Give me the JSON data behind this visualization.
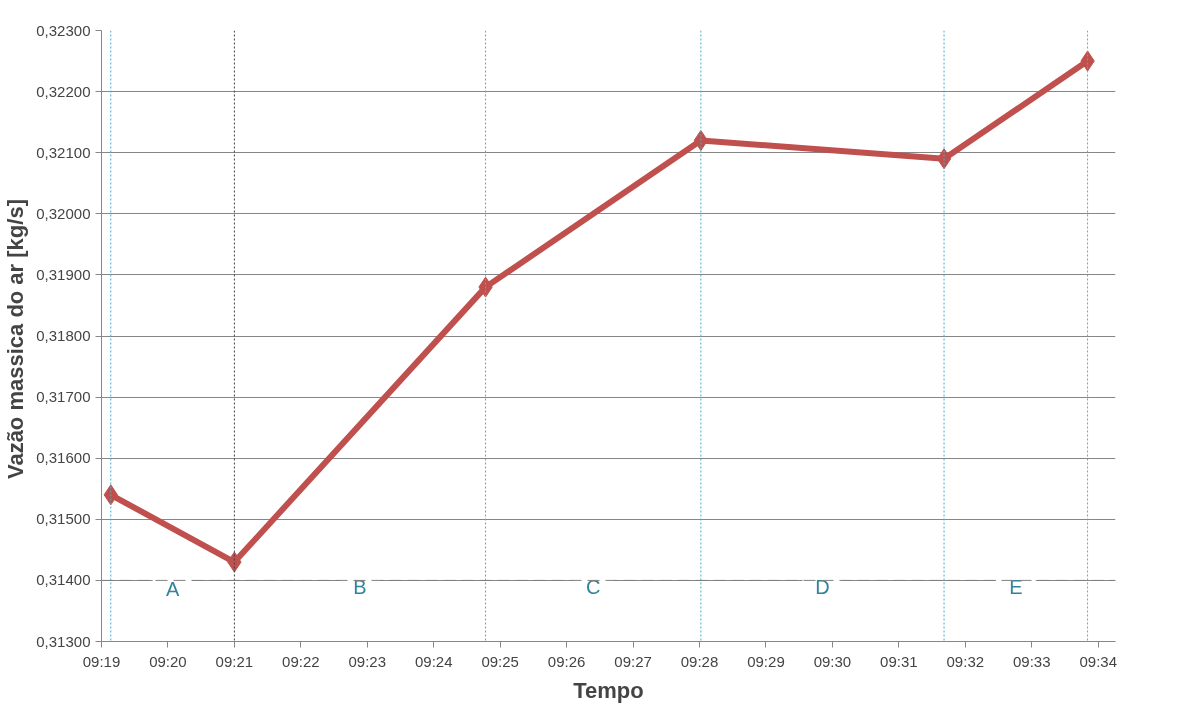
{
  "chart_data": {
    "type": "line",
    "xlabel": "Tempo",
    "ylabel": "Vazão massica do ar  [kg/s]",
    "x": [
      9.319,
      9.35,
      9.413,
      9.467,
      9.528,
      9.564
    ],
    "series": [
      {
        "color": "#c0504d",
        "values": [
          0.3154,
          0.3143,
          0.3188,
          0.3212,
          0.3209,
          0.3225
        ]
      }
    ],
    "marker": "diamond",
    "line_style": "solid",
    "grid": "y",
    "xlim": [
      9.31667,
      9.571
    ],
    "xticks": [
      {
        "value": 9.31667,
        "label": "09:19"
      },
      {
        "value": 9.33333,
        "label": "09:20"
      },
      {
        "value": 9.35,
        "label": "09:21"
      },
      {
        "value": 9.36667,
        "label": "09:22"
      },
      {
        "value": 9.38333,
        "label": "09:23"
      },
      {
        "value": 9.4,
        "label": "09:24"
      },
      {
        "value": 9.41667,
        "label": "09:25"
      },
      {
        "value": 9.43333,
        "label": "09:26"
      },
      {
        "value": 9.45,
        "label": "09:27"
      },
      {
        "value": 9.46667,
        "label": "09:28"
      },
      {
        "value": 9.48333,
        "label": "09:29"
      },
      {
        "value": 9.5,
        "label": "09:30"
      },
      {
        "value": 9.51667,
        "label": "09:31"
      },
      {
        "value": 9.53333,
        "label": "09:32"
      },
      {
        "value": 9.55,
        "label": "09:33"
      },
      {
        "value": 9.56667,
        "label": "09:34"
      }
    ],
    "ylim": [
      0.313,
      0.323
    ],
    "yticks": [
      {
        "value": 0.313,
        "label": "0,31300"
      },
      {
        "value": 0.314,
        "label": "0,31400"
      },
      {
        "value": 0.315,
        "label": "0,31500"
      },
      {
        "value": 0.316,
        "label": "0,31600"
      },
      {
        "value": 0.317,
        "label": "0,31700"
      },
      {
        "value": 0.318,
        "label": "0,31800"
      },
      {
        "value": 0.319,
        "label": "0,31900"
      },
      {
        "value": 0.32,
        "label": "0,32000"
      },
      {
        "value": 0.321,
        "label": "0,32100"
      },
      {
        "value": 0.322,
        "label": "0,32200"
      },
      {
        "value": 0.323,
        "label": "0,32300"
      }
    ],
    "ref_lines": [
      {
        "axis": "x",
        "value": 9.319,
        "color": "#4bacc6",
        "line_style": "dotted"
      },
      {
        "axis": "x",
        "value": 9.35,
        "color": "#404040",
        "line_style": "dotted"
      },
      {
        "axis": "x",
        "value": 9.413,
        "color": "#4bacc6",
        "line_style": "dotted"
      },
      {
        "axis": "x",
        "value": 9.467,
        "color": "#4bacc6",
        "line_style": "dotted"
      },
      {
        "axis": "x",
        "value": 9.528,
        "color": "#4bacc6",
        "line_style": "dotted"
      },
      {
        "axis": "x",
        "value": 9.564,
        "color": "#4bacc6",
        "line_style": "dotted"
      },
      {
        "axis": "y",
        "value": 0.314,
        "color": "#808080",
        "line_style": "dashed"
      }
    ],
    "annotations": [
      {
        "text": "A",
        "x": 9.3345,
        "y": 0.31386
      },
      {
        "text": "B",
        "x": 9.3815,
        "y": 0.3139
      },
      {
        "text": "C",
        "x": 9.44,
        "y": 0.3139
      },
      {
        "text": "D",
        "x": 9.4975,
        "y": 0.3139
      },
      {
        "text": "E",
        "x": 9.546,
        "y": 0.3139
      }
    ]
  }
}
